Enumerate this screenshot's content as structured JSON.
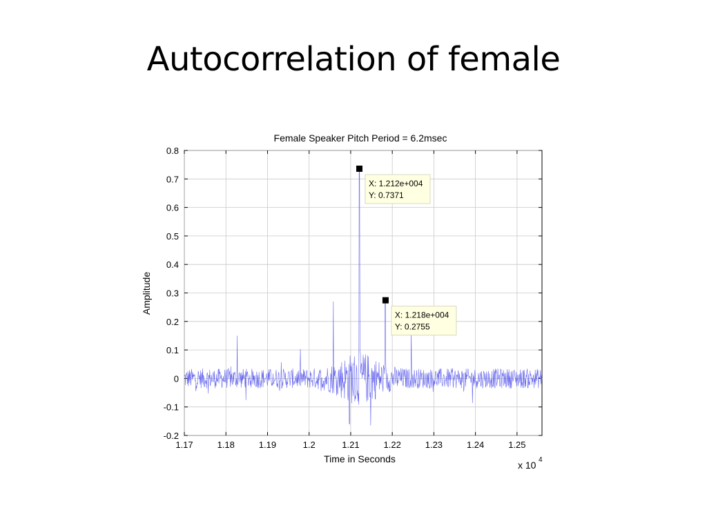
{
  "slide": {
    "title": "Autocorrelation of female"
  },
  "chart_data": {
    "type": "line",
    "title": "Female Speaker Pitch Period = 6.2msec",
    "xlabel": "Time in Seconds",
    "ylabel": "Amplitude",
    "x_exponent_label": "x 10",
    "x_exponent_power": "4",
    "xlim": [
      1.17,
      1.256
    ],
    "ylim": [
      -0.2,
      0.8
    ],
    "x_ticks": [
      1.17,
      1.18,
      1.19,
      1.2,
      1.21,
      1.22,
      1.23,
      1.24,
      1.25
    ],
    "x_tick_labels": [
      "1.17",
      "1.18",
      "1.19",
      "1.2",
      "1.21",
      "1.22",
      "1.23",
      "1.24",
      "1.25"
    ],
    "y_ticks": [
      -0.2,
      -0.1,
      0,
      0.1,
      0.2,
      0.3,
      0.4,
      0.5,
      0.6,
      0.7,
      0.8
    ],
    "y_tick_labels": [
      "-0.2",
      "-0.1",
      "0",
      "0.1",
      "0.2",
      "0.3",
      "0.4",
      "0.5",
      "0.6",
      "0.7",
      "0.8"
    ],
    "grid": true,
    "line_color": "#6666ee",
    "peaks": [
      {
        "x": 1.2121,
        "y": 0.7371
      },
      {
        "x": 1.2183,
        "y": 0.2755
      },
      {
        "x": 1.2058,
        "y": 0.27
      },
      {
        "x": 1.2246,
        "y": 0.17
      },
      {
        "x": 1.1827,
        "y": 0.15
      },
      {
        "x": 1.2097,
        "y": -0.16
      },
      {
        "x": 1.2148,
        "y": -0.165
      }
    ],
    "datatips": [
      {
        "x": 1.212,
        "y": 0.7371,
        "x_text": "X: 1.212e+004",
        "y_text": "Y: 0.7371"
      },
      {
        "x": 1.2183,
        "y": 0.2755,
        "x_text": "X: 1.218e+004",
        "y_text": "Y: 0.2755"
      }
    ]
  }
}
